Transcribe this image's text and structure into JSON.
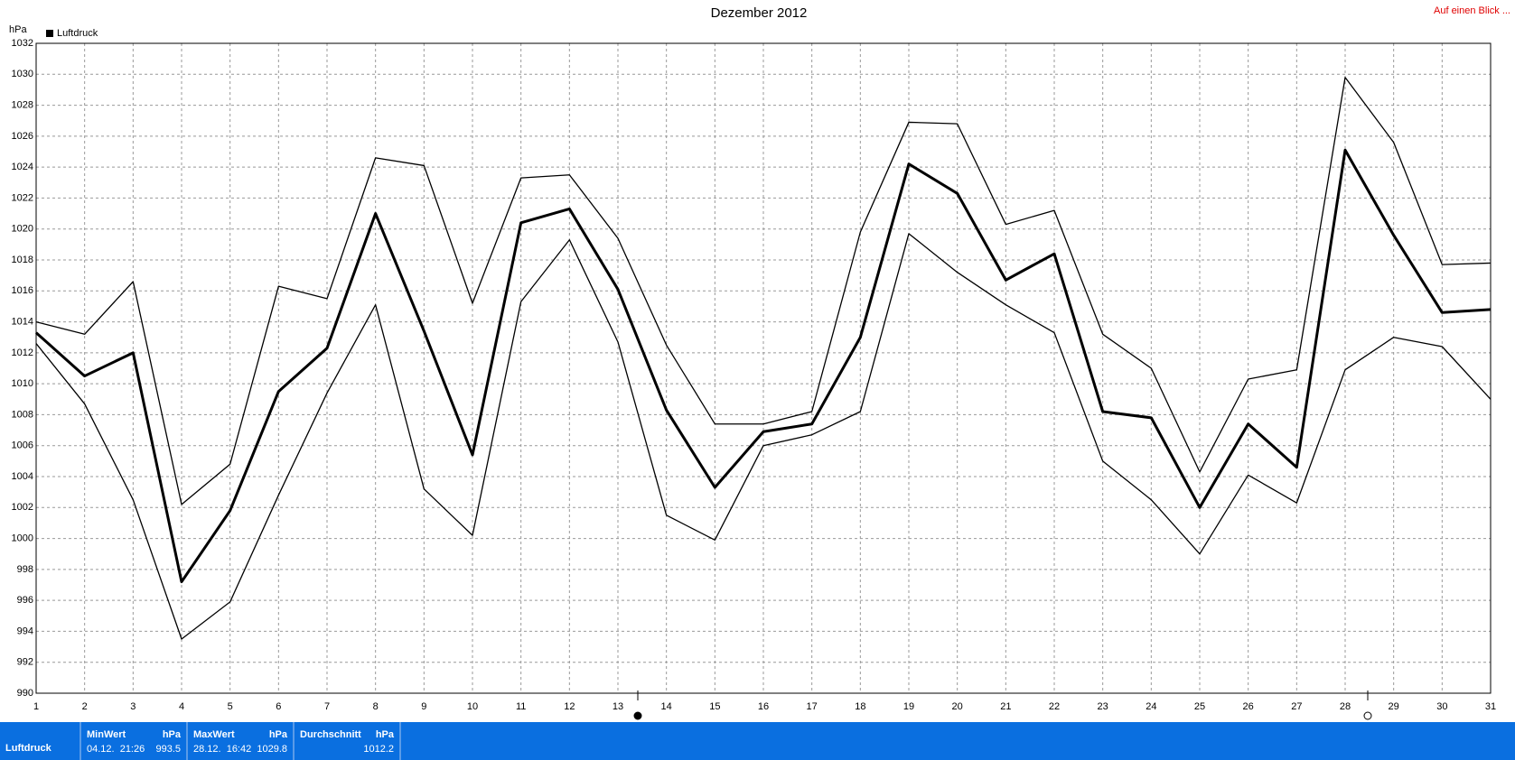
{
  "chart_data": {
    "type": "line",
    "title": "Dezember 2012",
    "link": "Auf einen Blick ...",
    "y_label": "hPa",
    "x": [
      1,
      2,
      3,
      4,
      5,
      6,
      7,
      8,
      9,
      10,
      11,
      12,
      13,
      14,
      15,
      16,
      17,
      18,
      19,
      20,
      21,
      22,
      23,
      24,
      25,
      26,
      27,
      28,
      29,
      30,
      31
    ],
    "xlim": [
      1,
      31
    ],
    "xticks": [
      1,
      2,
      3,
      4,
      5,
      6,
      7,
      8,
      9,
      10,
      11,
      12,
      13,
      14,
      15,
      16,
      17,
      18,
      19,
      20,
      21,
      22,
      23,
      24,
      25,
      26,
      27,
      28,
      29,
      30,
      31
    ],
    "ylim": [
      990,
      1032
    ],
    "yticks": [
      990,
      992,
      994,
      996,
      998,
      1000,
      1002,
      1004,
      1006,
      1008,
      1010,
      1012,
      1014,
      1016,
      1018,
      1020,
      1022,
      1024,
      1026,
      1028,
      1030,
      1032
    ],
    "grid": true,
    "legend": "top-left",
    "series": [
      {
        "name": "Luftdruck",
        "color": "#000000",
        "line_width": 3,
        "values": [
          1013.3,
          1010.5,
          1012.0,
          997.2,
          1001.8,
          1009.5,
          1012.3,
          1021.0,
          1013.4,
          1005.4,
          1020.4,
          1021.3,
          1016.1,
          1008.3,
          1003.3,
          1006.9,
          1007.4,
          1013.0,
          1024.2,
          1022.3,
          1016.7,
          1018.4,
          1008.2,
          1007.8,
          1002.0,
          1007.4,
          1004.6,
          1025.1,
          1019.6,
          1014.6,
          1014.8
        ]
      },
      {
        "color": "#000000",
        "line_width": 1.3,
        "values": [
          1014.0,
          1013.2,
          1016.6,
          1002.2,
          1004.8,
          1016.3,
          1015.5,
          1024.6,
          1024.1,
          1015.2,
          1023.3,
          1023.5,
          1019.4,
          1012.5,
          1007.4,
          1007.4,
          1008.2,
          1019.8,
          1026.9,
          1026.8,
          1020.3,
          1021.2,
          1013.2,
          1011.0,
          1004.3,
          1010.3,
          1010.9,
          1029.8,
          1025.6,
          1017.7,
          1017.8
        ]
      },
      {
        "color": "#000000",
        "line_width": 1.3,
        "values": [
          1012.6,
          1008.7,
          1002.5,
          993.5,
          995.9,
          1002.8,
          1009.4,
          1015.1,
          1003.2,
          1000.2,
          1015.3,
          1019.3,
          1012.7,
          1001.5,
          999.9,
          1006.0,
          1006.7,
          1008.2,
          1019.7,
          1017.2,
          1015.1,
          1013.3,
          1005.0,
          1002.5,
          999.0,
          1004.1,
          1002.3,
          1010.9,
          1013.0,
          1012.4,
          1009.0
        ]
      }
    ]
  },
  "summary": {
    "row_label": "Luftdruck",
    "columns": [
      {
        "label": "MinWert",
        "unit": "hPa",
        "time": "04.12.  21:26",
        "value": 993.5
      },
      {
        "label": "MaxWert",
        "unit": "hPa",
        "time": "28.12.  16:42",
        "value": 1029.8
      },
      {
        "label": "Durchschnitt",
        "unit": "hPa",
        "value": 1012.2
      }
    ]
  }
}
